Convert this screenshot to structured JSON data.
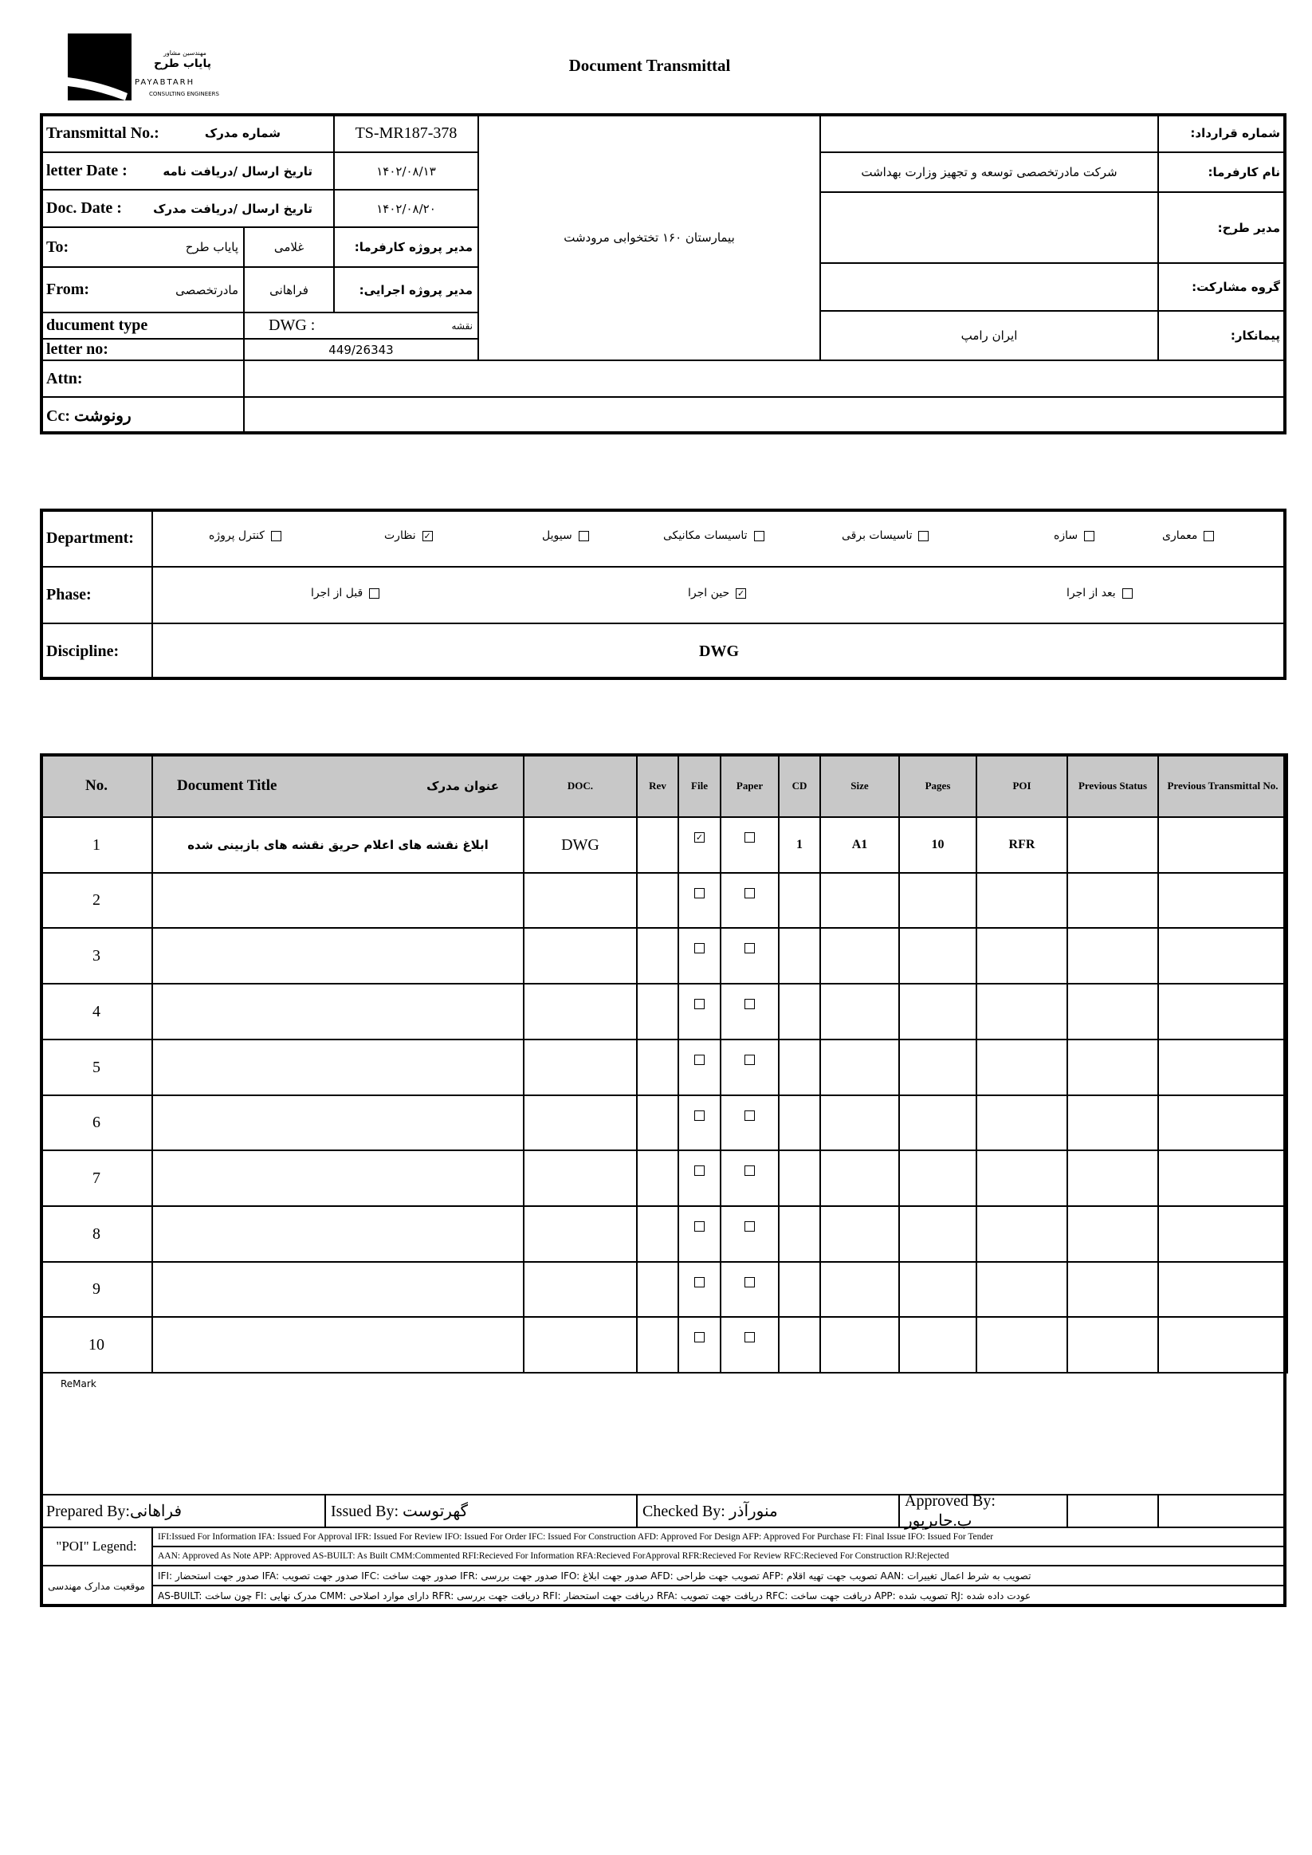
{
  "logo": {
    "fa_top": "مهندسین مشاور",
    "fa_name": "پایاب طرح",
    "en_name": "PAYABTARH",
    "en_sub": "CONSULTING ENGINEERS"
  },
  "title": "Document Transmittal",
  "header": {
    "transmittal_label": "Transmittal No.:",
    "transmittal_label_fa": "شماره مدرک",
    "transmittal_no": "TS-MR187-378",
    "letter_date_label": "letter Date  :",
    "letter_date_label_fa": "تاریخ ارسال /دریافت نامه",
    "letter_date": "۱۴۰۲/۰۸/۱۳",
    "doc_date_label": "Doc. Date :",
    "doc_date_label_fa": "تاریخ ارسال /دریافت مدرک",
    "doc_date": "۱۴۰۲/۰۸/۲۰",
    "to_label": "To:",
    "to_value": "پایاب طرح",
    "to_person": "غلامی",
    "to_role": "مدیر پروژه کارفرما:",
    "from_label": "From:",
    "from_value": "مادرتخصصی",
    "from_person": "فراهانی",
    "from_role": "مدیر پروژه اجرایی:",
    "doc_type_label": "ducument type",
    "doc_type": "DWG   :",
    "doc_type_fa": "نقشه",
    "letter_no_label": "letter no:",
    "letter_no": "449/26343",
    "attn_label": "Attn:",
    "cc_label": "Cc: رونوشت",
    "project": "بیمارستان ۱۶۰ تختخوابی مرودشت",
    "right": [
      {
        "label": "شماره قرارداد:",
        "value": ""
      },
      {
        "label": "نام کارفرما:",
        "value": "شرکت مادرتخصصی توسعه و تجهیز وزارت بهداشت"
      },
      {
        "label": "مدیر طرح:",
        "value": ""
      },
      {
        "label": "گروه مشارکت:",
        "value": ""
      },
      {
        "label": "پیمانکار:",
        "value": "ایران رامپ"
      }
    ]
  },
  "department": {
    "label": "Department:",
    "items": [
      {
        "label": "کنترل پروژه",
        "checked": false
      },
      {
        "label": "نظارت",
        "checked": true
      },
      {
        "label": "سیویل",
        "checked": false
      },
      {
        "label": "تاسیسات مکانیکی",
        "checked": false
      },
      {
        "label": "تاسیسات برقی",
        "checked": false
      },
      {
        "label": "سازه",
        "checked": false
      },
      {
        "label": "معماری",
        "checked": false
      }
    ]
  },
  "phase": {
    "label": "Phase:",
    "items": [
      {
        "label": "قبل از اجرا",
        "checked": false
      },
      {
        "label": "حین اجرا",
        "checked": true
      },
      {
        "label": "بعد از اجرا",
        "checked": false
      }
    ]
  },
  "discipline": {
    "label": "Discipline:",
    "value": "DWG"
  },
  "table": {
    "headers": {
      "no": "No.",
      "title": "Document Title",
      "title_fa": "عنوان مدرک",
      "doc": "DOC.",
      "rev": "Rev",
      "file": "File",
      "paper": "Paper",
      "cd": "CD",
      "size": "Size",
      "pages": "Pages",
      "poi": "POI",
      "prev_status": "Previous Status",
      "prev_transmittal": "Previous Transmittal No."
    },
    "rows": [
      {
        "no": "1",
        "title": "ابلاغ نقشه های اعلام حریق نقشه های بازبینی شده",
        "doc": "DWG",
        "rev": "",
        "file": true,
        "paper": false,
        "cd": "1",
        "size": "A1",
        "pages": "10",
        "poi": "RFR",
        "prev_status": "",
        "prev_transmittal": ""
      },
      {
        "no": "2",
        "title": "",
        "doc": "",
        "rev": "",
        "file": false,
        "paper": false,
        "cd": "",
        "size": "",
        "pages": "",
        "poi": "",
        "prev_status": "",
        "prev_transmittal": ""
      },
      {
        "no": "3",
        "title": "",
        "doc": "",
        "rev": "",
        "file": false,
        "paper": false,
        "cd": "",
        "size": "",
        "pages": "",
        "poi": "",
        "prev_status": "",
        "prev_transmittal": ""
      },
      {
        "no": "4",
        "title": "",
        "doc": "",
        "rev": "",
        "file": false,
        "paper": false,
        "cd": "",
        "size": "",
        "pages": "",
        "poi": "",
        "prev_status": "",
        "prev_transmittal": ""
      },
      {
        "no": "5",
        "title": "",
        "doc": "",
        "rev": "",
        "file": false,
        "paper": false,
        "cd": "",
        "size": "",
        "pages": "",
        "poi": "",
        "prev_status": "",
        "prev_transmittal": ""
      },
      {
        "no": "6",
        "title": "",
        "doc": "",
        "rev": "",
        "file": false,
        "paper": false,
        "cd": "",
        "size": "",
        "pages": "",
        "poi": "",
        "prev_status": "",
        "prev_transmittal": ""
      },
      {
        "no": "7",
        "title": "",
        "doc": "",
        "rev": "",
        "file": false,
        "paper": false,
        "cd": "",
        "size": "",
        "pages": "",
        "poi": "",
        "prev_status": "",
        "prev_transmittal": ""
      },
      {
        "no": "8",
        "title": "",
        "doc": "",
        "rev": "",
        "file": false,
        "paper": false,
        "cd": "",
        "size": "",
        "pages": "",
        "poi": "",
        "prev_status": "",
        "prev_transmittal": ""
      },
      {
        "no": "9",
        "title": "",
        "doc": "",
        "rev": "",
        "file": false,
        "paper": false,
        "cd": "",
        "size": "",
        "pages": "",
        "poi": "",
        "prev_status": "",
        "prev_transmittal": ""
      },
      {
        "no": "10",
        "title": "",
        "doc": "",
        "rev": "",
        "file": false,
        "paper": false,
        "cd": "",
        "size": "",
        "pages": "",
        "poi": "",
        "prev_status": "",
        "prev_transmittal": ""
      }
    ]
  },
  "remark_label": "ReMark",
  "signoff": {
    "prepared": "Prepared By:فراهانی",
    "issued": "Issued By: گهرتوست",
    "checked": "Checked By: منورآذر",
    "approved": "Approved By: ب.جابرپور"
  },
  "legend": {
    "label": "\"POI\" Legend:",
    "line1": "IFI:Issued For Information  IFA: Issued For Approval  IFR: Issued For Review   IFO: Issued For Order  IFC: Issued For Construction AFD: Approved For Design AFP: Approved For Purchase  FI: Final Issue  IFO: Issued For Tender",
    "line2": "AAN: Approved As Note  APP: Approved  AS-BUILT: As Built CMM:Commented  RFI:Recieved For Information   RFA:Recieved ForApproval   RFR:Recieved For Review  RFC:Recieved For Construction  RJ:Rejected",
    "fa_label": "موقعیت مدارک مهندسی",
    "fa_line1": "IFI: صدور جهت استحضار   IFA: صدور جهت تصویب   IFC: صدور جهت ساخت   IFR: صدور جهت بررسی   IFO: صدور جهت ابلاغ   AFD: تصویب جهت طراحی   AFP: تصویب جهت تهیه اقلام   AAN: تصویب به شرط اعمال تغییرات",
    "fa_line2": "AS-BUILT: چون ساخت   FI: مدرک نهایی   CMM: دارای موارد اصلاحی   RFR: دریافت جهت بررسی   RFI: دریافت جهت استحضار   RFA: دریافت جهت تصویب   RFC: دریافت جهت ساخت   APP: تصویب شده   RJ: عودت داده شده"
  }
}
